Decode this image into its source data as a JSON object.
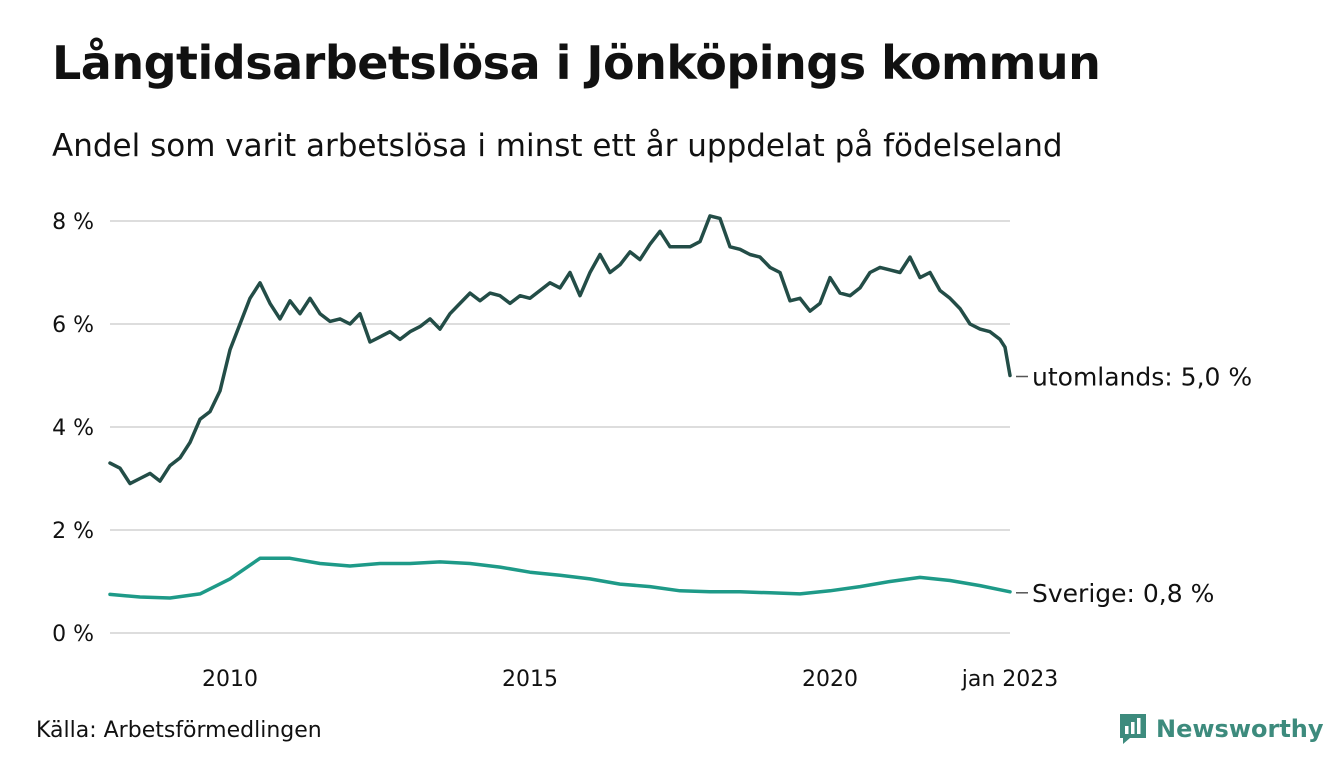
{
  "header": {
    "title": "Långtidsarbetslösa i Jönköpings kommun",
    "subtitle": "Andel som varit arbetslösa i minst ett år uppdelat på födelseland"
  },
  "footer": {
    "source": "Källa: Arbetsförmedlingen",
    "brand": "Newsworthy"
  },
  "chart_data": {
    "type": "line",
    "title": "Långtidsarbetslösa i Jönköpings kommun",
    "subtitle": "Andel som varit arbetslösa i minst ett år uppdelat på födelseland",
    "ylim": [
      0,
      8
    ],
    "yticks": [
      0,
      2,
      4,
      6,
      8
    ],
    "ytick_labels": [
      "0 %",
      "2 %",
      "4 %",
      "6 %",
      "8 %"
    ],
    "xlim": [
      "2008-01",
      "2023-01"
    ],
    "xtick_labels": [
      {
        "x": "2010-01",
        "label": "2010"
      },
      {
        "x": "2015-01",
        "label": "2015"
      },
      {
        "x": "2020-01",
        "label": "2020"
      },
      {
        "x": "2023-01",
        "label": "jan 2023"
      }
    ],
    "grid": true,
    "legend": "none",
    "series": [
      {
        "name": "utomlands",
        "end_label": "utomlands: 5,0 %",
        "color": "#234d47",
        "points": [
          [
            "2008-01",
            3.3
          ],
          [
            "2008-03",
            3.2
          ],
          [
            "2008-05",
            2.9
          ],
          [
            "2008-07",
            3.0
          ],
          [
            "2008-09",
            3.1
          ],
          [
            "2008-11",
            2.95
          ],
          [
            "2009-01",
            3.25
          ],
          [
            "2009-03",
            3.4
          ],
          [
            "2009-05",
            3.7
          ],
          [
            "2009-07",
            4.15
          ],
          [
            "2009-09",
            4.3
          ],
          [
            "2009-11",
            4.7
          ],
          [
            "2010-01",
            5.5
          ],
          [
            "2010-03",
            6.0
          ],
          [
            "2010-05",
            6.5
          ],
          [
            "2010-07",
            6.8
          ],
          [
            "2010-09",
            6.4
          ],
          [
            "2010-11",
            6.1
          ],
          [
            "2011-01",
            6.45
          ],
          [
            "2011-03",
            6.2
          ],
          [
            "2011-05",
            6.5
          ],
          [
            "2011-07",
            6.2
          ],
          [
            "2011-09",
            6.05
          ],
          [
            "2011-11",
            6.1
          ],
          [
            "2012-01",
            6.0
          ],
          [
            "2012-03",
            6.2
          ],
          [
            "2012-05",
            5.65
          ],
          [
            "2012-07",
            5.75
          ],
          [
            "2012-09",
            5.85
          ],
          [
            "2012-11",
            5.7
          ],
          [
            "2013-01",
            5.85
          ],
          [
            "2013-03",
            5.95
          ],
          [
            "2013-05",
            6.1
          ],
          [
            "2013-07",
            5.9
          ],
          [
            "2013-09",
            6.2
          ],
          [
            "2013-11",
            6.4
          ],
          [
            "2014-01",
            6.6
          ],
          [
            "2014-03",
            6.45
          ],
          [
            "2014-05",
            6.6
          ],
          [
            "2014-07",
            6.55
          ],
          [
            "2014-09",
            6.4
          ],
          [
            "2014-11",
            6.55
          ],
          [
            "2015-01",
            6.5
          ],
          [
            "2015-03",
            6.65
          ],
          [
            "2015-05",
            6.8
          ],
          [
            "2015-07",
            6.7
          ],
          [
            "2015-09",
            7.0
          ],
          [
            "2015-11",
            6.55
          ],
          [
            "2016-01",
            7.0
          ],
          [
            "2016-03",
            7.35
          ],
          [
            "2016-05",
            7.0
          ],
          [
            "2016-07",
            7.15
          ],
          [
            "2016-09",
            7.4
          ],
          [
            "2016-11",
            7.25
          ],
          [
            "2017-01",
            7.55
          ],
          [
            "2017-03",
            7.8
          ],
          [
            "2017-05",
            7.5
          ],
          [
            "2017-07",
            7.5
          ],
          [
            "2017-09",
            7.5
          ],
          [
            "2017-11",
            7.6
          ],
          [
            "2018-01",
            8.1
          ],
          [
            "2018-03",
            8.05
          ],
          [
            "2018-05",
            7.5
          ],
          [
            "2018-07",
            7.45
          ],
          [
            "2018-09",
            7.35
          ],
          [
            "2018-11",
            7.3
          ],
          [
            "2019-01",
            7.1
          ],
          [
            "2019-03",
            7.0
          ],
          [
            "2019-05",
            6.45
          ],
          [
            "2019-07",
            6.5
          ],
          [
            "2019-09",
            6.25
          ],
          [
            "2019-11",
            6.4
          ],
          [
            "2020-01",
            6.9
          ],
          [
            "2020-03",
            6.6
          ],
          [
            "2020-05",
            6.55
          ],
          [
            "2020-07",
            6.7
          ],
          [
            "2020-09",
            7.0
          ],
          [
            "2020-11",
            7.1
          ],
          [
            "2021-01",
            7.05
          ],
          [
            "2021-03",
            7.0
          ],
          [
            "2021-05",
            7.3
          ],
          [
            "2021-07",
            6.9
          ],
          [
            "2021-09",
            7.0
          ],
          [
            "2021-11",
            6.65
          ],
          [
            "2022-01",
            6.5
          ],
          [
            "2022-03",
            6.3
          ],
          [
            "2022-05",
            6.0
          ],
          [
            "2022-07",
            5.9
          ],
          [
            "2022-09",
            5.85
          ],
          [
            "2022-11",
            5.7
          ],
          [
            "2022-12",
            5.55
          ],
          [
            "2023-01",
            5.0
          ]
        ]
      },
      {
        "name": "Sverige",
        "end_label": "Sverige: 0,8 %",
        "color": "#1e9a88",
        "points": [
          [
            "2008-01",
            0.75
          ],
          [
            "2008-07",
            0.7
          ],
          [
            "2009-01",
            0.68
          ],
          [
            "2009-07",
            0.76
          ],
          [
            "2010-01",
            1.05
          ],
          [
            "2010-07",
            1.45
          ],
          [
            "2011-01",
            1.45
          ],
          [
            "2011-07",
            1.35
          ],
          [
            "2012-01",
            1.3
          ],
          [
            "2012-07",
            1.35
          ],
          [
            "2013-01",
            1.35
          ],
          [
            "2013-07",
            1.38
          ],
          [
            "2014-01",
            1.35
          ],
          [
            "2014-07",
            1.28
          ],
          [
            "2015-01",
            1.18
          ],
          [
            "2015-07",
            1.12
          ],
          [
            "2016-01",
            1.05
          ],
          [
            "2016-07",
            0.95
          ],
          [
            "2017-01",
            0.9
          ],
          [
            "2017-07",
            0.82
          ],
          [
            "2018-01",
            0.8
          ],
          [
            "2018-07",
            0.8
          ],
          [
            "2019-01",
            0.78
          ],
          [
            "2019-07",
            0.76
          ],
          [
            "2020-01",
            0.82
          ],
          [
            "2020-07",
            0.9
          ],
          [
            "2021-01",
            1.0
          ],
          [
            "2021-07",
            1.08
          ],
          [
            "2022-01",
            1.02
          ],
          [
            "2022-07",
            0.92
          ],
          [
            "2023-01",
            0.8
          ]
        ]
      }
    ]
  }
}
